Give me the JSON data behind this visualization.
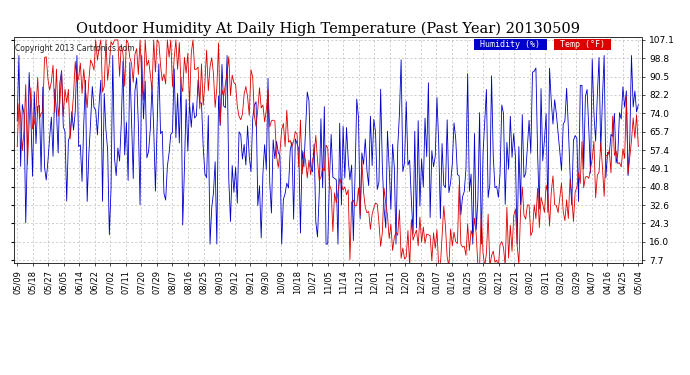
{
  "title": "Outdoor Humidity At Daily High Temperature (Past Year) 20130509",
  "copyright": "Copyright 2013 Cartronics.com",
  "legend_humidity": "Humidity (%)",
  "legend_temp": "Temp (°F)",
  "yticks": [
    7.7,
    16.0,
    24.3,
    32.6,
    40.8,
    49.1,
    57.4,
    65.7,
    74.0,
    82.2,
    90.5,
    98.8,
    107.1
  ],
  "xtick_labels": [
    "05/09",
    "05/18",
    "05/27",
    "06/05",
    "06/14",
    "06/22",
    "07/02",
    "07/11",
    "07/20",
    "07/29",
    "08/07",
    "08/16",
    "08/25",
    "09/03",
    "09/12",
    "09/21",
    "09/30",
    "10/09",
    "10/18",
    "10/27",
    "11/05",
    "11/14",
    "11/23",
    "12/01",
    "12/11",
    "12/20",
    "12/29",
    "01/07",
    "01/16",
    "01/25",
    "02/03",
    "02/12",
    "02/21",
    "03/02",
    "03/11",
    "03/20",
    "03/29",
    "04/07",
    "04/16",
    "04/25",
    "05/04"
  ],
  "background_color": "#ffffff",
  "grid_color": "#bbbbbb",
  "humidity_color": "#0000cc",
  "temp_color": "#dd0000",
  "title_fontsize": 10.5,
  "tick_fontsize": 6.5,
  "ylim": [
    7.7,
    107.1
  ],
  "n_points": 365,
  "humidity_legend_bg": "#0000cc",
  "temp_legend_bg": "#dd0000"
}
